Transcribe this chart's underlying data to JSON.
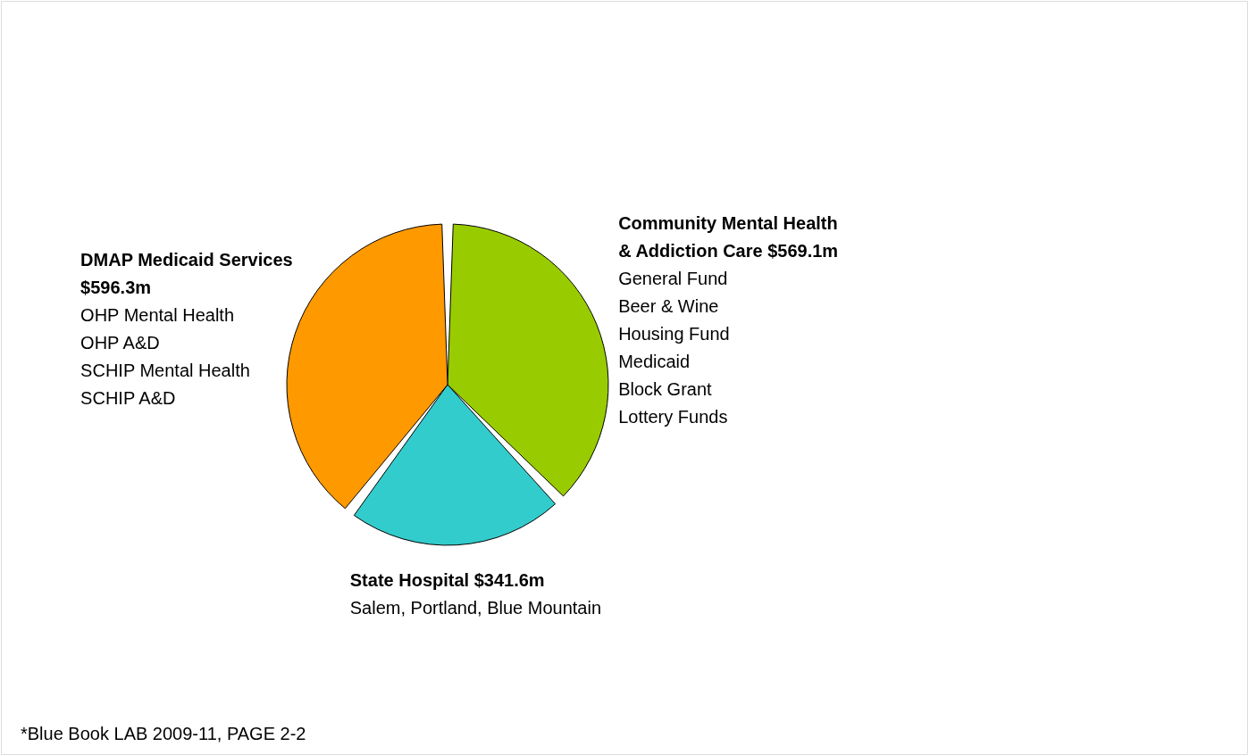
{
  "chart_data": {
    "type": "pie",
    "categories": [
      "Community Mental Health & Addiction Care",
      "State Hospital",
      "DMAP Medicaid Services"
    ],
    "values": [
      569.1,
      341.6,
      596.3
    ],
    "value_labels": [
      "$569.1m",
      "$341.6m",
      "$596.3m"
    ],
    "colors": [
      "#99cc00",
      "#33cccc",
      "#ff9900"
    ],
    "annotations": [
      "General Fund\nBeer & Wine\nHousing Fund\nMedicaid\nBlock Grant\nLottery Funds",
      "Salem, Portland, Blue Mountain",
      "OHP Mental Health\nOHP A&D\nSCHIP Mental Health\nSCHIP A&D",
      "*Blue Book LAB 2009-11, PAGE 2-2"
    ]
  }
}
